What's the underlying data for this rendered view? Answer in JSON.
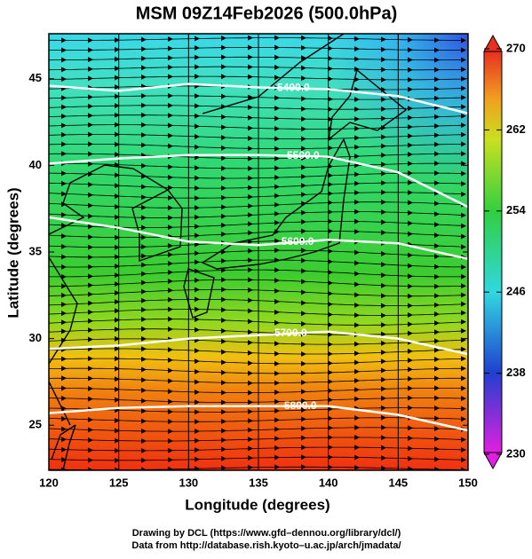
{
  "chart_data": {
    "type": "map",
    "title": "MSM 09Z14Feb2026 (500.0hPa)",
    "x_label": "Longitude (degrees)",
    "y_label": "Latitude  (degrees)",
    "xlim": [
      120,
      150
    ],
    "ylim": [
      22.4,
      47.6
    ],
    "xticks": [
      120,
      125,
      130,
      135,
      140,
      145,
      150
    ],
    "yticks": [
      25,
      30,
      35,
      40,
      45
    ],
    "grid": true,
    "x": [
      120,
      125,
      130,
      135,
      140,
      145,
      150
    ],
    "series": [
      {
        "name": "5400.0",
        "color": "#ffffff",
        "values": [
          44.6,
          44.3,
          44.7,
          44.5,
          44.4,
          44.0,
          43.0
        ],
        "label_at": 137.5
      },
      {
        "name": "5500.0",
        "color": "#ffffff",
        "values": [
          40.1,
          40.4,
          40.6,
          40.6,
          40.5,
          39.6,
          37.6
        ],
        "label_at": 138.2
      },
      {
        "name": "5600.0",
        "color": "#ffffff",
        "values": [
          37.0,
          36.4,
          35.6,
          35.4,
          35.7,
          35.5,
          34.6
        ],
        "label_at": 137.8
      },
      {
        "name": "5700.0",
        "color": "#ffffff",
        "values": [
          29.4,
          29.6,
          30.0,
          30.2,
          30.4,
          30.0,
          29.1
        ],
        "label_at": 137.3
      },
      {
        "name": "5800.0",
        "color": "#ffffff",
        "values": [
          25.7,
          26.0,
          26.1,
          26.1,
          26.1,
          25.6,
          24.7
        ],
        "label_at": 138.0
      }
    ],
    "colorbar": {
      "lim": [
        230,
        270
      ],
      "ticks": [
        230,
        238,
        246,
        254,
        262,
        270
      ]
    },
    "footer": [
      "Drawing by DCL (https://www.gfd–dennou.org/library/dcl/)",
      "Data from http://database.rish.kyoto–u.ac.jp/arch/jmadata/"
    ]
  }
}
